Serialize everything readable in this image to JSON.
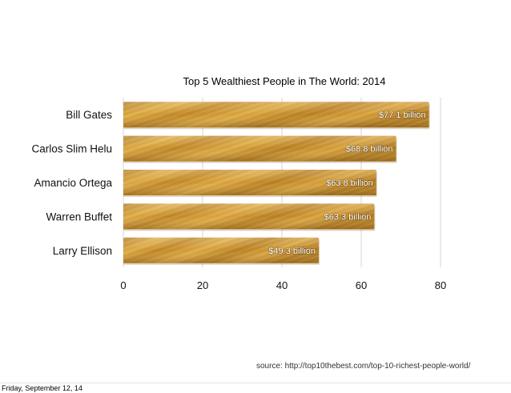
{
  "chart_data": {
    "type": "bar",
    "orientation": "horizontal",
    "title": "Top 5 Wealthiest People in The World: 2014",
    "categories": [
      "Bill Gates",
      "Carlos Slim Helu",
      "Amancio Ortega",
      "Warren Buffet",
      "Larry Ellison"
    ],
    "values": [
      77.1,
      68.8,
      63.8,
      63.3,
      49.3
    ],
    "data_labels": [
      "$77.1 billion",
      "$68.8 billion",
      "$63.8 billion",
      "$63.3 billion",
      "$49.3 billion"
    ],
    "x_ticks": [
      "0",
      "20",
      "40",
      "60",
      "80"
    ],
    "xlim": [
      0,
      80
    ],
    "grid": true,
    "xlabel": "",
    "ylabel": "",
    "bar_color": "#c8901e"
  },
  "source_text": "source: http://top10thebest.com/top-10-richest-people-world/",
  "footer_date": "Friday, September 12, 14"
}
